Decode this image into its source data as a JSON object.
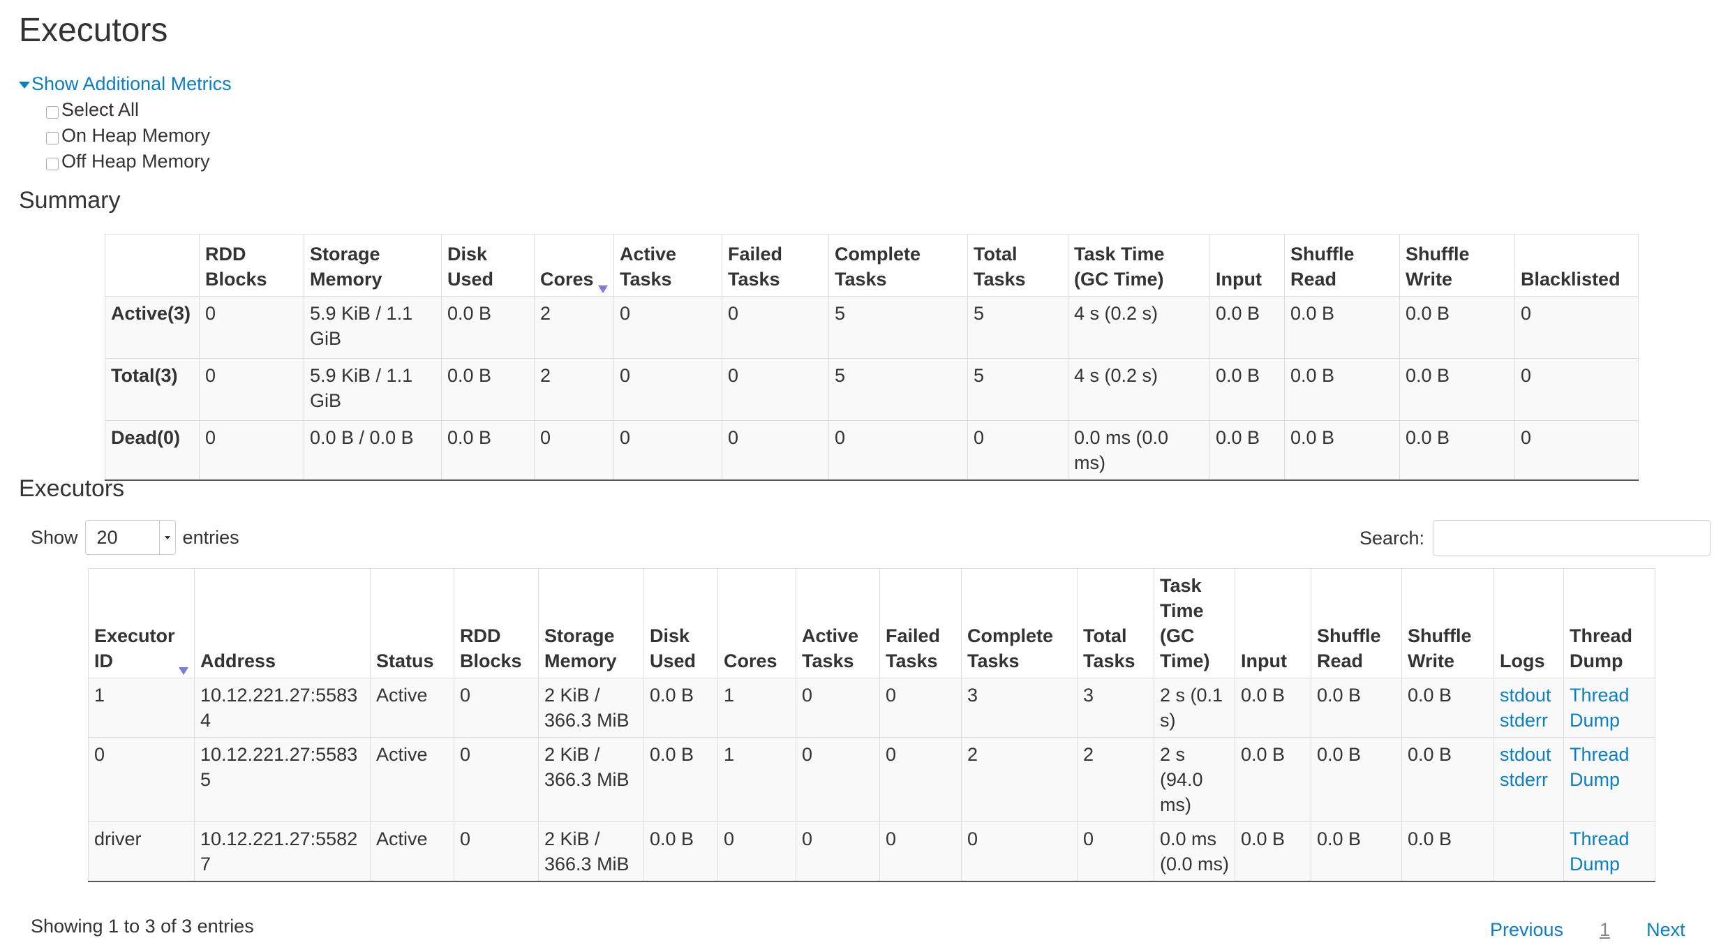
{
  "title": "Executors",
  "metrics": {
    "toggle_label": "Show Additional Metrics",
    "options": [
      "Select All",
      "On Heap Memory",
      "Off Heap Memory"
    ]
  },
  "summary": {
    "heading": "Summary",
    "columns": [
      "",
      "RDD Blocks",
      "Storage Memory",
      "Disk Used",
      "Cores",
      "Active Tasks",
      "Failed Tasks",
      "Complete Tasks",
      "Total Tasks",
      "Task Time (GC Time)",
      "Input",
      "Shuffle Read",
      "Shuffle Write",
      "Blacklisted"
    ],
    "rows": [
      [
        "Active(3)",
        "0",
        "5.9 KiB / 1.1 GiB",
        "0.0 B",
        "2",
        "0",
        "0",
        "5",
        "5",
        "4 s (0.2 s)",
        "0.0 B",
        "0.0 B",
        "0.0 B",
        "0"
      ],
      [
        "Total(3)",
        "0",
        "5.9 KiB / 1.1 GiB",
        "0.0 B",
        "2",
        "0",
        "0",
        "5",
        "5",
        "4 s (0.2 s)",
        "0.0 B",
        "0.0 B",
        "0.0 B",
        "0"
      ],
      [
        "Dead(0)",
        "0",
        "0.0 B / 0.0 B",
        "0.0 B",
        "0",
        "0",
        "0",
        "0",
        "0",
        "0.0 ms (0.0 ms)",
        "0.0 B",
        "0.0 B",
        "0.0 B",
        "0"
      ]
    ]
  },
  "executors": {
    "heading": "Executors",
    "show_label": "Show",
    "entries_value": "20",
    "entries_label": "entries",
    "search_label": "Search:",
    "search_value": "",
    "columns": [
      "Executor ID",
      "Address",
      "Status",
      "RDD Blocks",
      "Storage Memory",
      "Disk Used",
      "Cores",
      "Active Tasks",
      "Failed Tasks",
      "Complete Tasks",
      "Total Tasks",
      "Task Time (GC Time)",
      "Input",
      "Shuffle Read",
      "Shuffle Write",
      "Logs",
      "Thread Dump"
    ],
    "rows": [
      {
        "cells": [
          "1",
          "10.12.221.27:55834",
          "Active",
          "0",
          "2 KiB / 366.3 MiB",
          "0.0 B",
          "1",
          "0",
          "0",
          "3",
          "3",
          "2 s (0.1 s)",
          "0.0 B",
          "0.0 B",
          "0.0 B"
        ],
        "logs": [
          "stdout",
          "stderr"
        ],
        "thread_dump": "Thread Dump"
      },
      {
        "cells": [
          "0",
          "10.12.221.27:55835",
          "Active",
          "0",
          "2 KiB / 366.3 MiB",
          "0.0 B",
          "1",
          "0",
          "0",
          "2",
          "2",
          "2 s (94.0 ms)",
          "0.0 B",
          "0.0 B",
          "0.0 B"
        ],
        "logs": [
          "stdout",
          "stderr"
        ],
        "thread_dump": "Thread Dump"
      },
      {
        "cells": [
          "driver",
          "10.12.221.27:55827",
          "Active",
          "0",
          "2 KiB / 366.3 MiB",
          "0.0 B",
          "0",
          "0",
          "0",
          "0",
          "0",
          "0.0 ms (0.0 ms)",
          "0.0 B",
          "0.0 B",
          "0.0 B"
        ],
        "logs": [],
        "thread_dump": "Thread Dump"
      }
    ],
    "info": "Showing 1 to 3 of 3 entries",
    "pager": {
      "previous": "Previous",
      "current": "1",
      "next": "Next"
    }
  },
  "colors": {
    "link": "#0b7fc4",
    "sort_arrow": "#7b7be0",
    "row_bg": "#f9f9f9"
  }
}
